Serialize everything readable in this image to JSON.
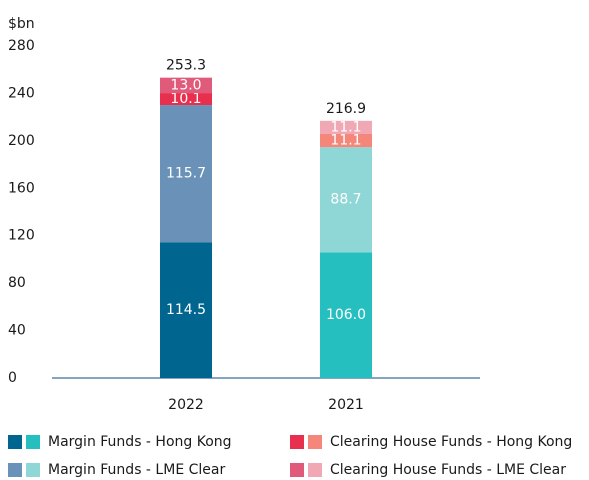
{
  "chart_data": {
    "type": "stacked-bar",
    "y_label": "$bn",
    "categories": [
      "2022",
      "2021"
    ],
    "series": [
      {
        "name": "Margin Funds - Hong Kong",
        "color": [
          "#00658f",
          "#26bfbf"
        ],
        "values": [
          114.5,
          106.0
        ],
        "value_labels": [
          "114.5",
          "106.0"
        ]
      },
      {
        "name": "Margin Funds - LME Clear",
        "color": [
          "#6a92b8",
          "#8fd6d6"
        ],
        "values": [
          115.7,
          88.7
        ],
        "value_labels": [
          "115.7",
          "88.7"
        ]
      },
      {
        "name": "Clearing House Funds - Hong Kong",
        "color": [
          "#e8304e",
          "#f4877a"
        ],
        "values": [
          10.1,
          11.1
        ],
        "value_labels": [
          "10.1",
          "11.1"
        ]
      },
      {
        "name": "Clearing House Funds - LME Clear",
        "color": [
          "#e05a7a",
          "#f0a8b5"
        ],
        "values": [
          13.0,
          11.1
        ],
        "value_labels": [
          "13.0",
          "11.1"
        ]
      }
    ],
    "totals": [
      253.3,
      216.9
    ],
    "ylim": [
      0,
      280
    ],
    "yticks": [
      0,
      40,
      80,
      120,
      160,
      200,
      240,
      280
    ],
    "grid": false
  }
}
